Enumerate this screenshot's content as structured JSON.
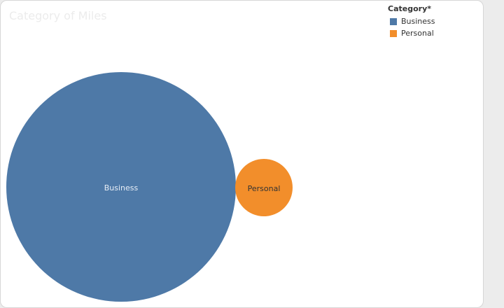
{
  "chart_data": {
    "type": "bubble",
    "title": "Category of Miles",
    "categories": [
      "Business",
      "Personal"
    ],
    "values": [
      14600,
      885
    ],
    "colors": [
      "#4e79a7",
      "#f28e2b"
    ],
    "legend_title": "Category*",
    "legend_placement": "top-right",
    "grid": false
  },
  "legend": {
    "title": "Category*",
    "items": [
      {
        "label": "Business",
        "color": "#4e79a7"
      },
      {
        "label": "Personal",
        "color": "#f28e2b"
      }
    ]
  },
  "bubbles": [
    {
      "label": "Business",
      "label_color": "#e8eef6"
    },
    {
      "label": "Personal",
      "label_color": "#333333"
    }
  ]
}
